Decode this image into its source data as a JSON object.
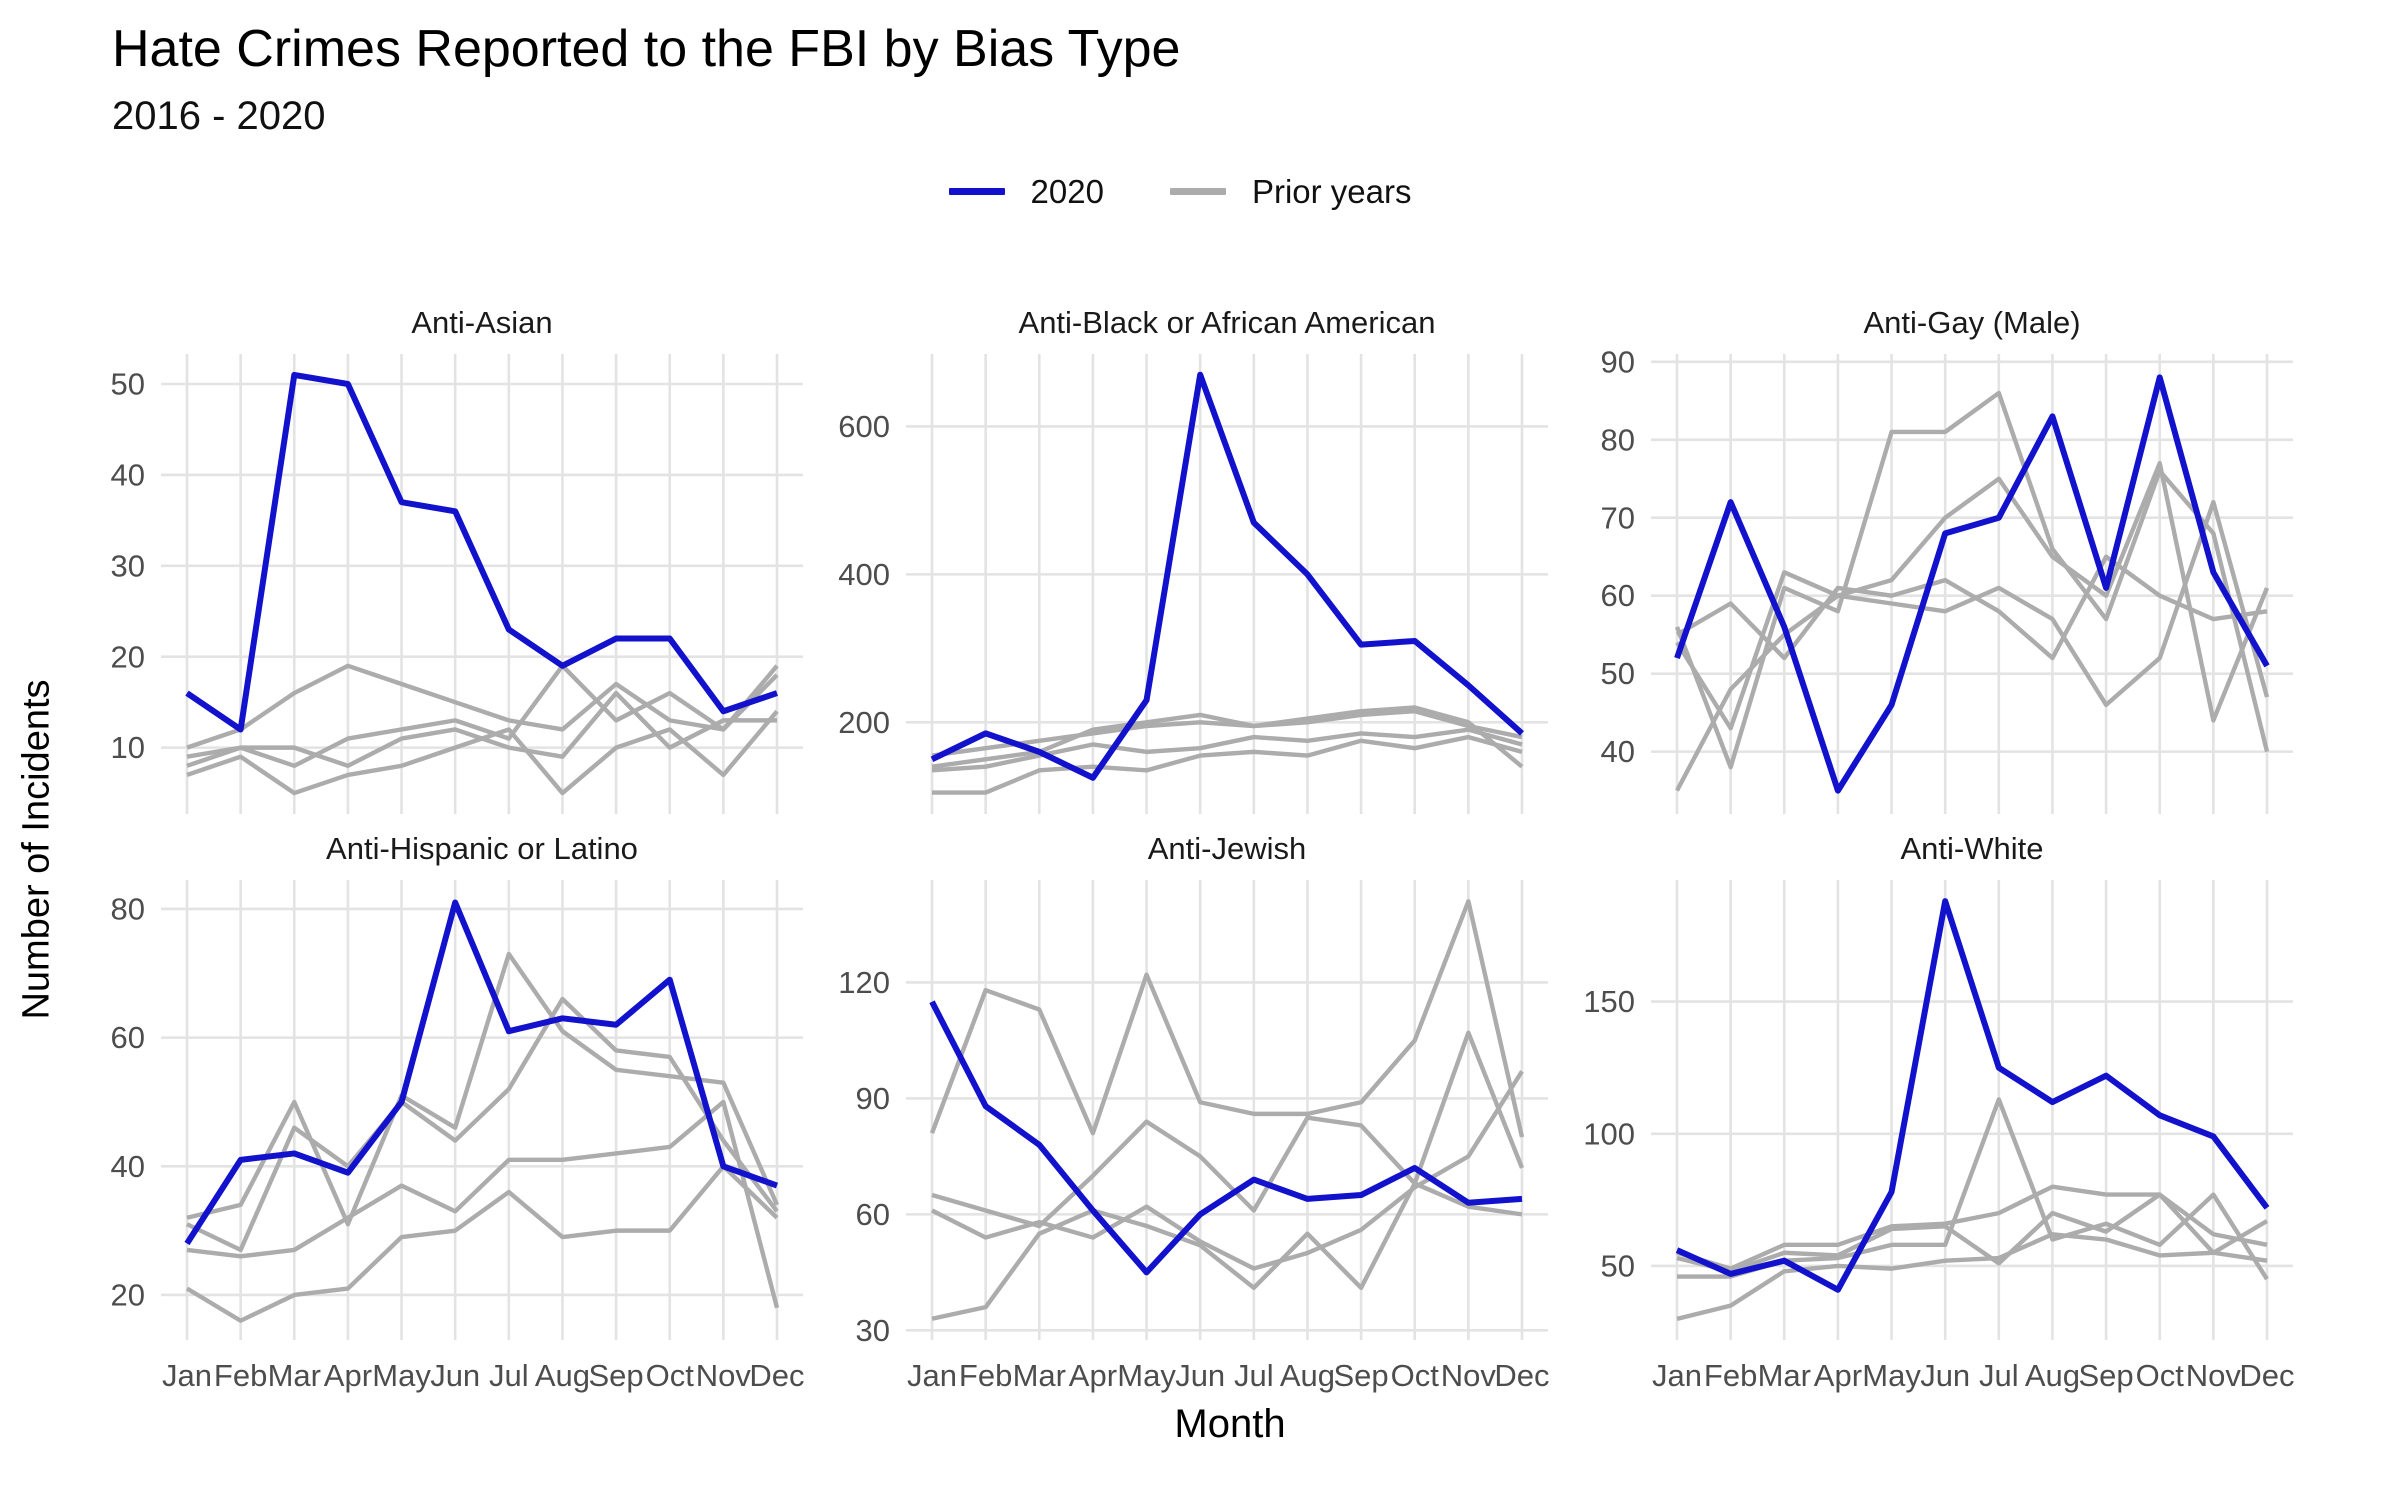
{
  "header": {
    "title": "Hate Crimes Reported to the FBI by Bias Type",
    "subtitle": "2016 - 2020"
  },
  "legend": {
    "position": "top-center",
    "items": [
      {
        "label": "2020",
        "color": "#1212CD"
      },
      {
        "label": "Prior years",
        "color": "#ACACAC"
      }
    ]
  },
  "axis_titles": {
    "y": "Number of Incidents",
    "x": "Month"
  },
  "colors": {
    "line_2020": "#1212CD",
    "line_prior": "#ACACAC",
    "grid": "#E3E3E3",
    "tick_text": "#4D4D4D",
    "strip_text": "#1A1A1A",
    "background": "#FFFFFF"
  },
  "chart_data": {
    "type": "line",
    "grid": true,
    "legend_position": "top",
    "xlabel": "Month",
    "ylabel": "Number of Incidents",
    "categories": [
      "Jan",
      "Feb",
      "Mar",
      "Apr",
      "May",
      "Jun",
      "Jul",
      "Aug",
      "Sep",
      "Oct",
      "Nov",
      "Dec"
    ],
    "facets": [
      {
        "title": "Anti-Asian",
        "slug": "anti-asian",
        "yticks": [
          10,
          20,
          30,
          40,
          50
        ],
        "ylim": [
          2.7,
          53.3
        ],
        "series": [
          {
            "name": "2020",
            "values": [
              16,
              12,
              51,
              50,
              37,
              36,
              23,
              19,
              22,
              22,
              14,
              16
            ]
          },
          {
            "name": "prior-year-1",
            "values": [
              10,
              12,
              16,
              19,
              17,
              15,
              13,
              12,
              17,
              13,
              12,
              18
            ]
          },
          {
            "name": "prior-year-2",
            "values": [
              8,
              10,
              8,
              11,
              12,
              13,
              11,
              19,
              13,
              16,
              12,
              19
            ]
          },
          {
            "name": "prior-year-3",
            "values": [
              9,
              10,
              10,
              8,
              11,
              12,
              10,
              9,
              16,
              10,
              13,
              13
            ]
          },
          {
            "name": "prior-year-4",
            "values": [
              7,
              9,
              5,
              7,
              8,
              10,
              12,
              5,
              10,
              12,
              7,
              14
            ]
          }
        ]
      },
      {
        "title": "Anti-Black or African American",
        "slug": "anti-black-or-african-american",
        "yticks": [
          200,
          400,
          600
        ],
        "ylim": [
          76,
          698
        ],
        "series": [
          {
            "name": "2020",
            "values": [
              150,
              185,
              160,
              125,
              230,
              670,
              470,
              400,
              305,
              310,
              250,
              185
            ]
          },
          {
            "name": "prior-year-1",
            "values": [
              155,
              165,
              175,
              185,
              195,
              200,
              195,
              200,
              210,
              215,
              195,
              180
            ]
          },
          {
            "name": "prior-year-2",
            "values": [
              140,
              150,
              160,
              190,
              200,
              210,
              195,
              205,
              215,
              220,
              200,
              140
            ]
          },
          {
            "name": "prior-year-3",
            "values": [
              135,
              140,
              155,
              170,
              160,
              165,
              180,
              175,
              185,
              180,
              190,
              170
            ]
          },
          {
            "name": "prior-year-4",
            "values": [
              105,
              105,
              135,
              140,
              135,
              155,
              160,
              155,
              175,
              165,
              180,
              160
            ]
          }
        ]
      },
      {
        "title": "Anti-Gay (Male)",
        "slug": "anti-gay-male",
        "yticks": [
          40,
          50,
          60,
          70,
          80,
          90
        ],
        "ylim": [
          32,
          91
        ],
        "series": [
          {
            "name": "2020",
            "values": [
              52,
              72,
              56,
              35,
              46,
              68,
              70,
              83,
              61,
              88,
              63,
              51
            ]
          },
          {
            "name": "prior-year-1",
            "values": [
              35,
              48,
              55,
              60,
              62,
              70,
              75,
              65,
              60,
              77,
              44,
              61
            ]
          },
          {
            "name": "prior-year-2",
            "values": [
              56,
              38,
              61,
              58,
              81,
              81,
              86,
              66,
              57,
              76,
              68,
              40
            ]
          },
          {
            "name": "prior-year-3",
            "values": [
              55,
              59,
              52,
              61,
              60,
              62,
              58,
              52,
              65,
              60,
              57,
              58
            ]
          },
          {
            "name": "prior-year-4",
            "values": [
              54,
              43,
              63,
              60,
              59,
              58,
              61,
              57,
              46,
              52,
              72,
              47
            ]
          }
        ]
      },
      {
        "title": "Anti-Hispanic or Latino",
        "slug": "anti-hispanic-or-latino",
        "yticks": [
          20,
          40,
          60,
          80
        ],
        "ylim": [
          13,
          84.5
        ],
        "series": [
          {
            "name": "2020",
            "values": [
              28,
              41,
              42,
              39,
              50,
              81,
              61,
              63,
              62,
              69,
              40,
              37
            ]
          },
          {
            "name": "prior-year-1",
            "values": [
              32,
              34,
              50,
              31,
              51,
              46,
              73,
              61,
              55,
              54,
              53,
              34
            ]
          },
          {
            "name": "prior-year-2",
            "values": [
              31,
              27,
              46,
              40,
              50,
              44,
              52,
              66,
              58,
              57,
              44,
              33
            ]
          },
          {
            "name": "prior-year-3",
            "values": [
              27,
              26,
              27,
              32,
              37,
              33,
              41,
              41,
              42,
              43,
              50,
              18
            ]
          },
          {
            "name": "prior-year-4",
            "values": [
              21,
              16,
              20,
              21,
              29,
              30,
              36,
              29,
              30,
              30,
              40,
              32
            ]
          }
        ]
      },
      {
        "title": "Anti-Jewish",
        "slug": "anti-jewish",
        "yticks": [
          30,
          60,
          90,
          120
        ],
        "ylim": [
          27.5,
          146.5
        ],
        "series": [
          {
            "name": "2020",
            "values": [
              115,
              88,
              78,
              61,
              45,
              60,
              69,
              64,
              65,
              72,
              63,
              64
            ]
          },
          {
            "name": "prior-year-1",
            "values": [
              81,
              118,
              113,
              81,
              122,
              89,
              86,
              86,
              89,
              105,
              141,
              80
            ]
          },
          {
            "name": "prior-year-2",
            "values": [
              65,
              61,
              57,
              70,
              84,
              75,
              61,
              85,
              83,
              68,
              107,
              72
            ]
          },
          {
            "name": "prior-year-3",
            "values": [
              61,
              54,
              58,
              54,
              62,
              53,
              46,
              50,
              56,
              67,
              75,
              97
            ]
          },
          {
            "name": "prior-year-4",
            "values": [
              33,
              36,
              55,
              61,
              57,
              52,
              41,
              55,
              41,
              68,
              62,
              60
            ]
          }
        ]
      },
      {
        "title": "Anti-White",
        "slug": "anti-white",
        "yticks": [
          50,
          100,
          150
        ],
        "ylim": [
          22,
          196
        ],
        "series": [
          {
            "name": "2020",
            "values": [
              56,
              47,
              52,
              41,
              78,
              188,
              125,
              112,
              122,
              107,
              99,
              72
            ]
          },
          {
            "name": "prior-year-1",
            "values": [
              55,
              49,
              58,
              58,
              65,
              66,
              70,
              80,
              77,
              77,
              62,
              58
            ]
          },
          {
            "name": "prior-year-2",
            "values": [
              53,
              48,
              55,
              54,
              64,
              65,
              51,
              70,
              63,
              77,
              55,
              67
            ]
          },
          {
            "name": "prior-year-3",
            "values": [
              46,
              46,
              52,
              53,
              58,
              58,
              113,
              60,
              66,
              58,
              77,
              45
            ]
          },
          {
            "name": "prior-year-4",
            "values": [
              30,
              35,
              48,
              50,
              49,
              52,
              53,
              62,
              60,
              54,
              55,
              52
            ]
          }
        ]
      }
    ]
  }
}
